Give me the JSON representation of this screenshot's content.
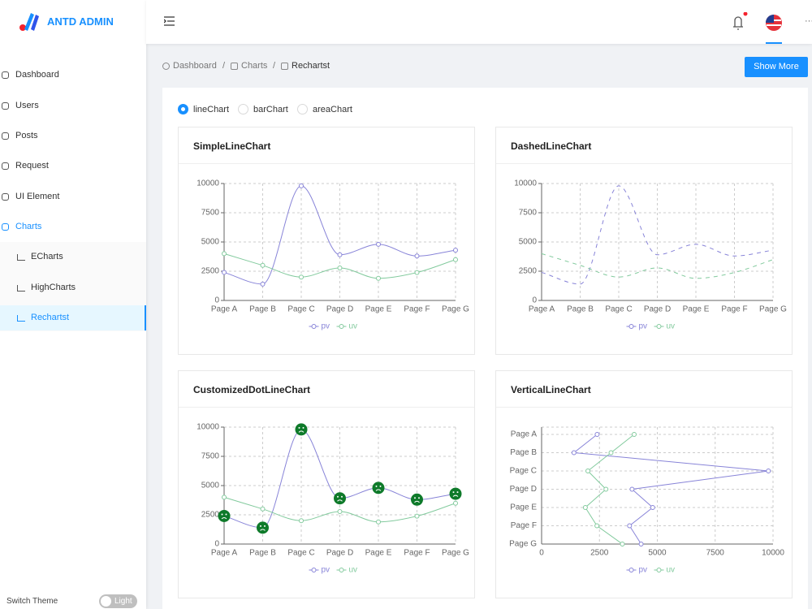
{
  "header": {
    "logo_text": "ANTD ADMIN",
    "more": "···"
  },
  "sidebar": {
    "menu": [
      "Dashboard",
      "Users",
      "Posts",
      "Request",
      "UI Element",
      "Charts"
    ],
    "submenu": [
      "ECharts",
      "HighCharts",
      "Rechartst"
    ],
    "switch_theme": "Switch Theme",
    "theme": "Light"
  },
  "breadcrumb": {
    "items": [
      "Dashboard",
      "Charts",
      "Rechartst"
    ],
    "separator": "/"
  },
  "button": "Show More",
  "chart_types": {
    "options": [
      "lineChart",
      "barChart",
      "areaChart"
    ],
    "selected": 0
  },
  "chart_data": [
    {
      "type": "line",
      "title": "SimpleLineChart",
      "curve": "monotone",
      "categories": [
        "Page A",
        "Page B",
        "Page C",
        "Page D",
        "Page E",
        "Page F",
        "Page G"
      ],
      "series": [
        {
          "name": "pv",
          "color": "#8884d8",
          "values": [
            2400,
            1398,
            9800,
            3908,
            4800,
            3800,
            4300
          ]
        },
        {
          "name": "uv",
          "color": "#82ca9d",
          "values": [
            4000,
            3000,
            2000,
            2780,
            1890,
            2390,
            3490
          ]
        }
      ],
      "ylim": [
        0,
        10000
      ],
      "yticks": [
        0,
        2500,
        5000,
        7500,
        10000
      ],
      "grid": true
    },
    {
      "type": "line",
      "title": "DashedLineChart",
      "curve": "monotone",
      "dashed": true,
      "categories": [
        "Page A",
        "Page B",
        "Page C",
        "Page D",
        "Page E",
        "Page F",
        "Page G"
      ],
      "series": [
        {
          "name": "pv",
          "color": "#8884d8",
          "values": [
            2400,
            1398,
            9800,
            3908,
            4800,
            3800,
            4300
          ]
        },
        {
          "name": "uv",
          "color": "#82ca9d",
          "values": [
            4000,
            3000,
            2000,
            2780,
            1890,
            2390,
            3490
          ]
        }
      ],
      "ylim": [
        0,
        10000
      ],
      "yticks": [
        0,
        2500,
        5000,
        7500,
        10000
      ],
      "grid": true
    },
    {
      "type": "line",
      "title": "CustomizedDotLineChart",
      "curve": "monotone",
      "categories": [
        "Page A",
        "Page B",
        "Page C",
        "Page D",
        "Page E",
        "Page F",
        "Page G"
      ],
      "series": [
        {
          "name": "pv",
          "color": "#8884d8",
          "dot": "face",
          "dot_color": "#0e7a2a",
          "values": [
            2400,
            1398,
            9800,
            3908,
            4800,
            3800,
            4300
          ]
        },
        {
          "name": "uv",
          "color": "#82ca9d",
          "values": [
            4000,
            3000,
            2000,
            2780,
            1890,
            2390,
            3490
          ]
        }
      ],
      "ylim": [
        0,
        10000
      ],
      "yticks": [
        0,
        2500,
        5000,
        7500,
        10000
      ],
      "grid": true
    },
    {
      "type": "line",
      "title": "VerticalLineChart",
      "curve": "linear",
      "layout": "vertical",
      "categories": [
        "Page A",
        "Page B",
        "Page C",
        "Page D",
        "Page E",
        "Page F",
        "Page G"
      ],
      "series": [
        {
          "name": "pv",
          "color": "#8884d8",
          "values": [
            2400,
            1398,
            9800,
            3908,
            4800,
            3800,
            4300
          ]
        },
        {
          "name": "uv",
          "color": "#82ca9d",
          "values": [
            4000,
            3000,
            2000,
            2780,
            1890,
            2390,
            3490
          ]
        }
      ],
      "xlim": [
        0,
        10000
      ],
      "xticks": [
        0,
        2500,
        5000,
        7500,
        10000
      ],
      "grid": true
    }
  ]
}
